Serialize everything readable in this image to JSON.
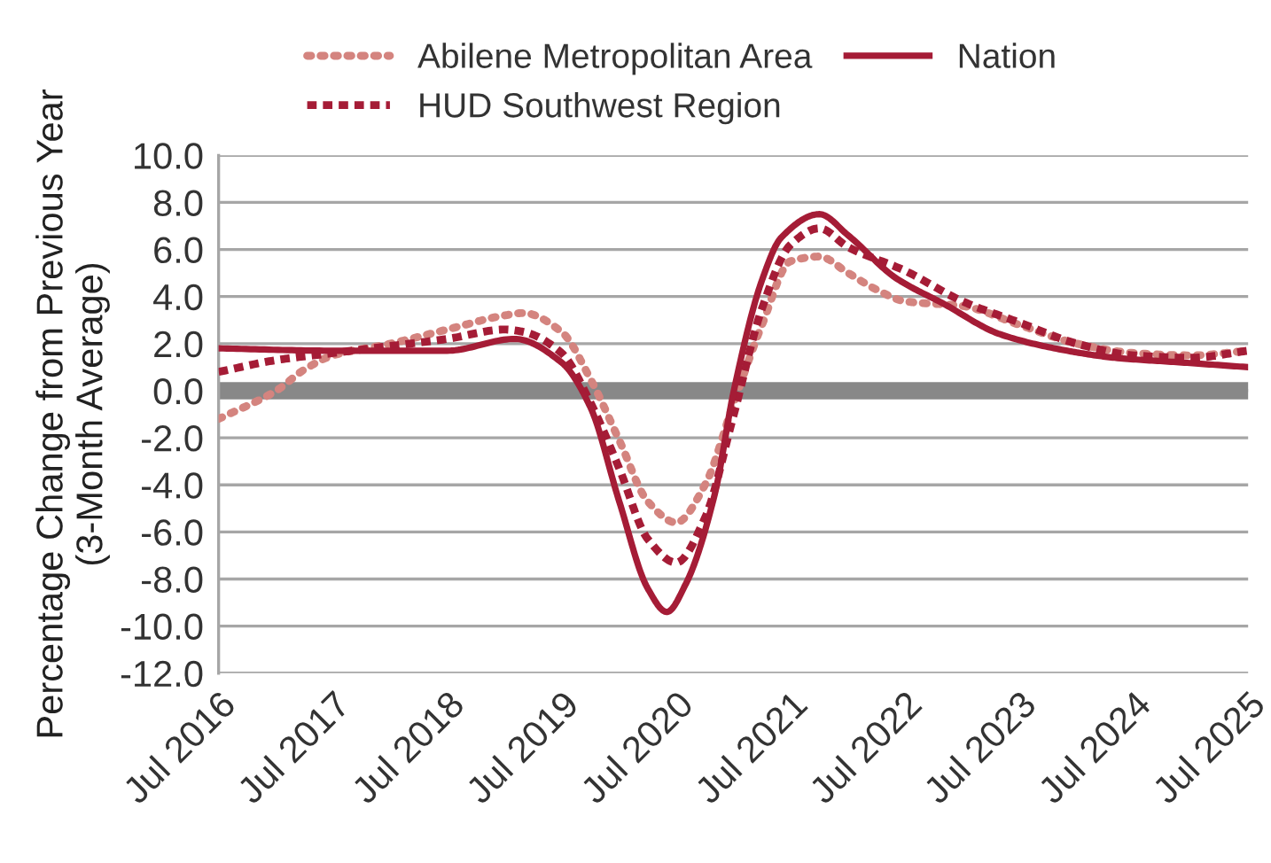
{
  "chart_data": {
    "type": "line",
    "ylabel": "Percentage Change from Previous Year\n(3-Month Average)",
    "xlim": [
      "2016-07",
      "2025-07"
    ],
    "xticks": [
      {
        "value": "2016-07",
        "label": "Jul 2016"
      },
      {
        "value": "2017-07",
        "label": "Jul 2017"
      },
      {
        "value": "2018-07",
        "label": "Jul 2018"
      },
      {
        "value": "2019-07",
        "label": "Jul 2019"
      },
      {
        "value": "2020-07",
        "label": "Jul 2020"
      },
      {
        "value": "2021-07",
        "label": "Jul 2021"
      },
      {
        "value": "2022-07",
        "label": "Jul 2022"
      },
      {
        "value": "2023-07",
        "label": "Jul 2023"
      },
      {
        "value": "2024-07",
        "label": "Jul 2024"
      },
      {
        "value": "2025-07",
        "label": "Jul 2025"
      }
    ],
    "ylim": [
      -12,
      10
    ],
    "yticks": [
      {
        "value": -12,
        "label": "-12.0"
      },
      {
        "value": -10,
        "label": "-10.0"
      },
      {
        "value": -8,
        "label": "-8.0"
      },
      {
        "value": -6,
        "label": "-6.0"
      },
      {
        "value": -4,
        "label": "-4.0"
      },
      {
        "value": -2,
        "label": "-2.0"
      },
      {
        "value": 0,
        "label": "0.0"
      },
      {
        "value": 2,
        "label": "2.0"
      },
      {
        "value": 4,
        "label": "4.0"
      },
      {
        "value": 6,
        "label": "6.0"
      },
      {
        "value": 8,
        "label": "8.0"
      },
      {
        "value": 10,
        "label": "10.0"
      }
    ],
    "grid": "y",
    "legend": "top",
    "marker": "none",
    "ref_lines": [
      {
        "axis": "y",
        "value": 0,
        "color": "#888888"
      }
    ],
    "series": [
      {
        "name": "Abilene Metropolitan Area",
        "color": "#d4847f",
        "line_style": "dotted",
        "x": [
          "2016-07",
          "2017-01",
          "2017-04",
          "2017-07",
          "2018-01",
          "2018-07",
          "2019-01",
          "2019-03",
          "2019-07",
          "2019-10",
          "2020-01",
          "2020-04",
          "2020-07",
          "2020-10",
          "2021-01",
          "2021-04",
          "2021-07",
          "2021-10",
          "2022-01",
          "2022-04",
          "2022-07",
          "2023-01",
          "2023-07",
          "2024-01",
          "2024-07",
          "2025-01",
          "2025-07"
        ],
        "values": [
          -1.2,
          0.0,
          0.9,
          1.5,
          2.0,
          2.6,
          3.2,
          3.3,
          2.5,
          0.5,
          -2.1,
          -4.7,
          -5.6,
          -4.0,
          -0.5,
          2.8,
          5.5,
          5.7,
          5.0,
          4.3,
          3.8,
          3.6,
          2.8,
          2.0,
          1.6,
          1.5,
          1.7
        ]
      },
      {
        "name": "HUD Southwest Region",
        "color": "#a51c36",
        "line_style": "dashed",
        "x": [
          "2016-07",
          "2017-01",
          "2017-07",
          "2018-01",
          "2018-07",
          "2019-01",
          "2019-03",
          "2019-07",
          "2019-10",
          "2020-01",
          "2020-04",
          "2020-07",
          "2020-10",
          "2021-01",
          "2021-04",
          "2021-07",
          "2021-10",
          "2022-01",
          "2022-07",
          "2023-01",
          "2023-07",
          "2024-01",
          "2024-07",
          "2025-01",
          "2025-07"
        ],
        "values": [
          0.8,
          1.3,
          1.6,
          1.9,
          2.2,
          2.6,
          2.5,
          1.6,
          -0.5,
          -3.3,
          -6.3,
          -7.3,
          -5.4,
          -1.0,
          3.5,
          6.2,
          6.9,
          6.1,
          5.1,
          3.8,
          2.9,
          2.0,
          1.5,
          1.4,
          1.7
        ]
      },
      {
        "name": "Nation",
        "color": "#a51c36",
        "line_style": "solid",
        "x": [
          "2016-07",
          "2017-07",
          "2018-07",
          "2019-02",
          "2019-07",
          "2019-10",
          "2020-01",
          "2020-04",
          "2020-06",
          "2020-08",
          "2020-11",
          "2021-01",
          "2021-04",
          "2021-06",
          "2021-10",
          "2022-01",
          "2022-06",
          "2022-11",
          "2023-05",
          "2023-12",
          "2024-05",
          "2024-12",
          "2025-07"
        ],
        "values": [
          1.8,
          1.7,
          1.7,
          2.2,
          1.2,
          -0.7,
          -4.7,
          -8.4,
          -9.4,
          -8.2,
          -4.4,
          0.0,
          4.7,
          6.5,
          7.5,
          6.6,
          4.8,
          3.7,
          2.4,
          1.7,
          1.4,
          1.2,
          1.0
        ]
      }
    ]
  }
}
